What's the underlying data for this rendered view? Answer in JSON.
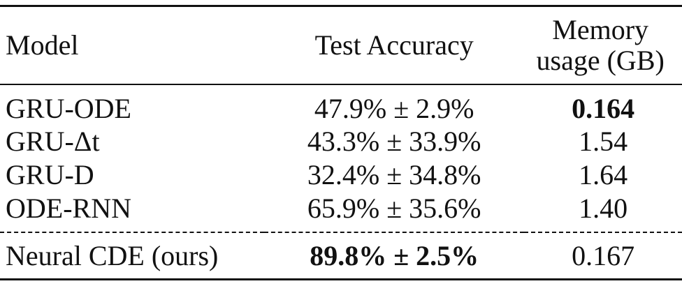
{
  "table": {
    "header": [
      "Model",
      "Test Accuracy",
      "Memory usage (GB)"
    ],
    "rows": [
      [
        "GRU-ODE",
        "47.9% ± 2.9%",
        "0.164"
      ],
      [
        "GRU-Δt",
        "43.3% ± 33.9%",
        "1.54"
      ],
      [
        "GRU-D",
        "32.4% ± 34.8%",
        "1.64"
      ],
      [
        "ODE-RNN",
        "65.9% ± 35.6%",
        "1.40"
      ],
      [
        "Neural CDE (ours)",
        "89.8% ± 2.5%",
        "0.167"
      ]
    ]
  }
}
